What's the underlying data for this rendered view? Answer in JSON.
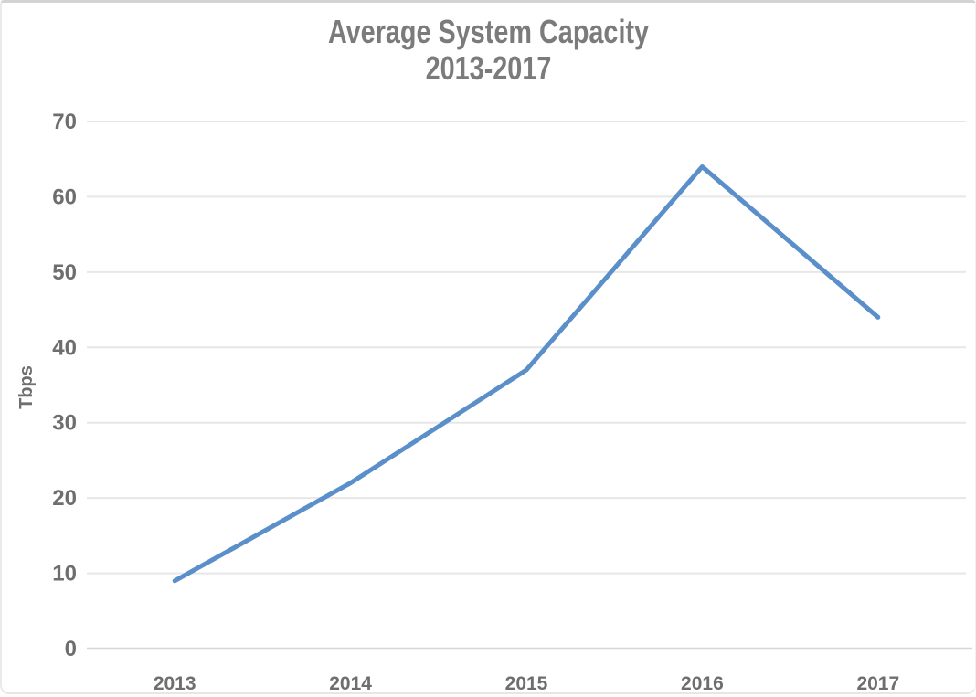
{
  "chart_data": {
    "type": "line",
    "title": "Average System Capacity",
    "subtitle": "2013-2017",
    "ylabel": "Tbps",
    "categories": [
      "2013",
      "2014",
      "2015",
      "2016",
      "2017"
    ],
    "values": [
      9,
      22,
      37,
      64,
      44
    ],
    "ylim": [
      0,
      70
    ],
    "y_ticks": [
      0,
      10,
      20,
      30,
      40,
      50,
      60,
      70
    ],
    "grid": "horizontal",
    "legend": "none",
    "colors": {
      "line": "#5b8fc9",
      "grid": "#e7e7e7",
      "axis": "#d6d6d6",
      "tick_text": "#6e6e6e",
      "title_text": "#7b7b7b"
    }
  }
}
